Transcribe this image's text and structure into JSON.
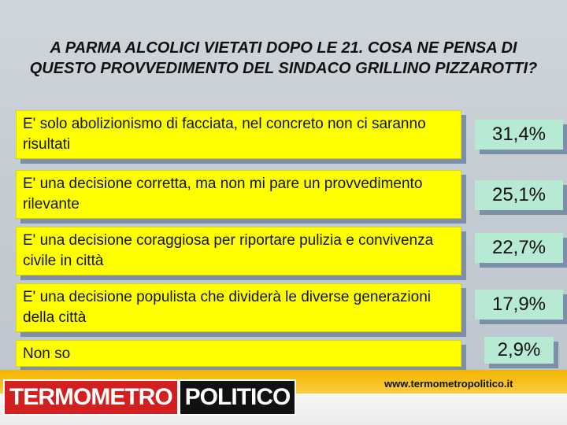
{
  "header": {
    "title": "A PARMA ALCOLICI VIETATI DOPO LE 21. COSA NE PENSA DI QUESTO PROVVEDIMENTO DEL SINDACO GRILLINO PIZZAROTTI?"
  },
  "chart_data": {
    "type": "table",
    "title": "A PARMA ALCOLICI VIETATI DOPO LE 21. COSA NE PENSA DI QUESTO PROVVEDIMENTO DEL SINDACO GRILLINO PIZZAROTTI?",
    "categories": [
      "E' solo abolizionismo di facciata, nel concreto non ci saranno risultati",
      "E' una decisione corretta, ma non mi pare un provvedimento rilevante",
      "E' una decisione coraggiosa per riportare pulizia e convivenza civile in città",
      "E' una decisione populista che dividerà  le diverse generazioni della città",
      "Non so"
    ],
    "values": [
      31.4,
      25.1,
      22.7,
      17.9,
      2.9
    ],
    "labels": [
      "31,4%",
      "25,1%",
      "22,7%",
      "17,9%",
      "2,9%"
    ],
    "colors": {
      "answer_bg": "#ffff00",
      "value_bg": "#b6ead2",
      "shadow": "#7c8fa8"
    }
  },
  "footer": {
    "logo_part1": "TERMOMETRO",
    "logo_part2": "POLITICO",
    "url": "www.termometropolitico.it"
  }
}
